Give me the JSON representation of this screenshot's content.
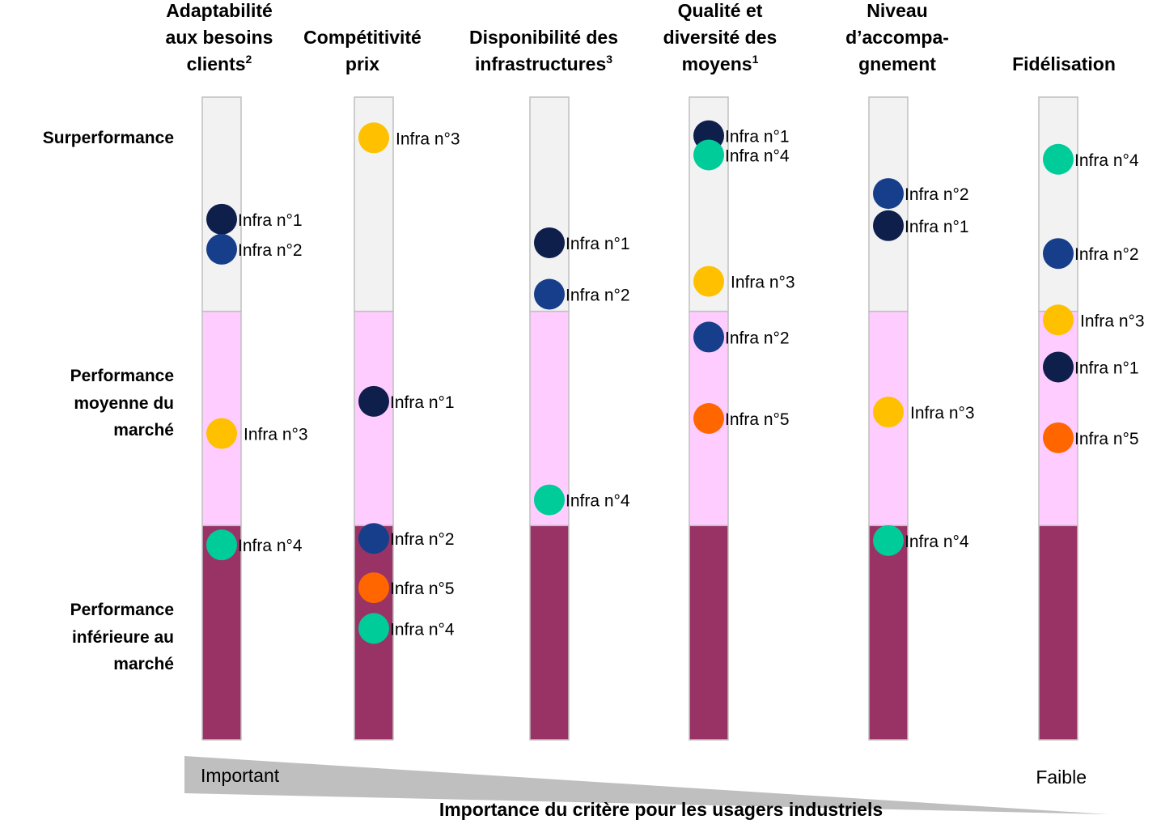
{
  "chart_data": {
    "type": "scatter",
    "title": "",
    "columns": [
      {
        "title_lines": [
          "Adaptabilité",
          "aux besoins",
          "clients"
        ],
        "sup": "2"
      },
      {
        "title_lines": [
          "Compétitivité",
          "prix"
        ],
        "sup": ""
      },
      {
        "title_lines": [
          "Disponibilité des",
          "infrastructures"
        ],
        "sup": "3"
      },
      {
        "title_lines": [
          "Qualité et",
          "diversité des",
          "moyens"
        ],
        "sup": "1"
      },
      {
        "title_lines": [
          "Niveau",
          "d’accompa-",
          "gnement"
        ],
        "sup": ""
      },
      {
        "title_lines": [
          "Fidélisation"
        ],
        "sup": ""
      }
    ],
    "levels": [
      {
        "lines": [
          "Surperformance"
        ],
        "color": "#f2f2f2"
      },
      {
        "lines": [
          "Performance",
          "moyenne du",
          "marché"
        ],
        "color": "#ffccff"
      },
      {
        "lines": [
          "Performance",
          "inférieure au",
          "marché"
        ],
        "color": "#993366"
      }
    ],
    "y_scale_note": "0 = bottom of bar, 3 = top of bar",
    "ylim": [
      0,
      3
    ],
    "series": [
      {
        "name": "Infra n°1",
        "color": "#0d1f4a"
      },
      {
        "name": "Infra n°2",
        "color": "#163e8a"
      },
      {
        "name": "Infra n°3",
        "color": "#ffc000"
      },
      {
        "name": "Infra n°4",
        "color": "#00cc99"
      },
      {
        "name": "Infra n°5",
        "color": "#ff6600"
      }
    ],
    "points": [
      {
        "column": 0,
        "series": 0,
        "label": "Infra n°1",
        "y": 2.43
      },
      {
        "column": 0,
        "series": 1,
        "label": "Infra n°2",
        "y": 2.29
      },
      {
        "column": 0,
        "series": 2,
        "label": "Infra n°3",
        "y": 1.43
      },
      {
        "column": 0,
        "series": 3,
        "label": "Infra n°4",
        "y": 0.91
      },
      {
        "column": 1,
        "series": 2,
        "label": "Infra n°3",
        "y": 2.81
      },
      {
        "column": 1,
        "series": 0,
        "label": "Infra n°1",
        "y": 1.58
      },
      {
        "column": 1,
        "series": 1,
        "label": "Infra n°2",
        "y": 0.94
      },
      {
        "column": 1,
        "series": 4,
        "label": "Infra n°5",
        "y": 0.71
      },
      {
        "column": 1,
        "series": 3,
        "label": "Infra n°4",
        "y": 0.52
      },
      {
        "column": 2,
        "series": 0,
        "label": "Infra n°1",
        "y": 2.32
      },
      {
        "column": 2,
        "series": 1,
        "label": "Infra n°2",
        "y": 2.08
      },
      {
        "column": 2,
        "series": 3,
        "label": "Infra n°4",
        "y": 1.12
      },
      {
        "column": 3,
        "series": 0,
        "label": "Infra n°1",
        "y": 2.82
      },
      {
        "column": 3,
        "series": 3,
        "label": "Infra n°4",
        "y": 2.73
      },
      {
        "column": 3,
        "series": 2,
        "label": "Infra n°3",
        "y": 2.14
      },
      {
        "column": 3,
        "series": 1,
        "label": "Infra n°2",
        "y": 1.88
      },
      {
        "column": 3,
        "series": 4,
        "label": "Infra n°5",
        "y": 1.5
      },
      {
        "column": 4,
        "series": 1,
        "label": "Infra n°2",
        "y": 2.55
      },
      {
        "column": 4,
        "series": 0,
        "label": "Infra n°1",
        "y": 2.4
      },
      {
        "column": 4,
        "series": 2,
        "label": "Infra n°3",
        "y": 1.53
      },
      {
        "column": 4,
        "series": 3,
        "label": "Infra n°4",
        "y": 0.93
      },
      {
        "column": 5,
        "series": 3,
        "label": "Infra n°4",
        "y": 2.71
      },
      {
        "column": 5,
        "series": 1,
        "label": "Infra n°2",
        "y": 2.27
      },
      {
        "column": 5,
        "series": 2,
        "label": "Infra n°3",
        "y": 1.96
      },
      {
        "column": 5,
        "series": 0,
        "label": "Infra n°1",
        "y": 1.74
      },
      {
        "column": 5,
        "series": 4,
        "label": "Infra n°5",
        "y": 1.41
      }
    ],
    "importance_axis": {
      "high_label": "Important",
      "low_label": "Faible",
      "title": "Importance du critère pour les usagers industriels",
      "color": "#bfbfbf"
    }
  }
}
